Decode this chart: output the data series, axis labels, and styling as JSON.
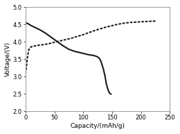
{
  "title": "",
  "xlabel": "Capacity/(mAh/g)",
  "ylabel": "Voltage/(V)",
  "xlim": [
    0,
    250
  ],
  "ylim": [
    2.0,
    5.0
  ],
  "xticks": [
    0,
    50,
    100,
    150,
    200,
    250
  ],
  "yticks": [
    2.0,
    2.5,
    3.0,
    3.5,
    4.0,
    4.5,
    5.0
  ],
  "line_color": "#1a1a1a",
  "dot_color": "#1a1a1a",
  "background_color": "#ffffff",
  "charge_x": [
    0,
    1,
    2,
    3,
    4,
    5,
    6,
    7,
    8,
    10,
    12,
    15,
    20,
    30,
    40,
    50,
    60,
    70,
    80,
    90,
    100,
    110,
    120,
    130,
    140,
    150,
    160,
    170,
    180,
    190,
    200,
    210,
    220,
    225
  ],
  "charge_y": [
    3.1,
    3.2,
    3.35,
    3.5,
    3.62,
    3.72,
    3.78,
    3.82,
    3.84,
    3.86,
    3.87,
    3.88,
    3.9,
    3.92,
    3.95,
    3.99,
    4.03,
    4.07,
    4.11,
    4.16,
    4.21,
    4.27,
    4.33,
    4.38,
    4.43,
    4.47,
    4.51,
    4.54,
    4.56,
    4.57,
    4.58,
    4.59,
    4.6,
    4.6
  ],
  "discharge_x": [
    0,
    5,
    10,
    15,
    20,
    25,
    30,
    35,
    40,
    45,
    50,
    55,
    60,
    65,
    70,
    75,
    80,
    85,
    90,
    95,
    100,
    105,
    110,
    115,
    118,
    120,
    122,
    125,
    128,
    130,
    132,
    135,
    138,
    140,
    142,
    144,
    146,
    148
  ],
  "discharge_y": [
    4.56,
    4.52,
    4.47,
    4.43,
    4.39,
    4.35,
    4.3,
    4.25,
    4.19,
    4.13,
    4.07,
    4.01,
    3.95,
    3.89,
    3.84,
    3.79,
    3.76,
    3.73,
    3.71,
    3.69,
    3.67,
    3.65,
    3.63,
    3.62,
    3.61,
    3.6,
    3.59,
    3.57,
    3.53,
    3.47,
    3.38,
    3.22,
    3.0,
    2.8,
    2.68,
    2.58,
    2.52,
    2.5
  ]
}
